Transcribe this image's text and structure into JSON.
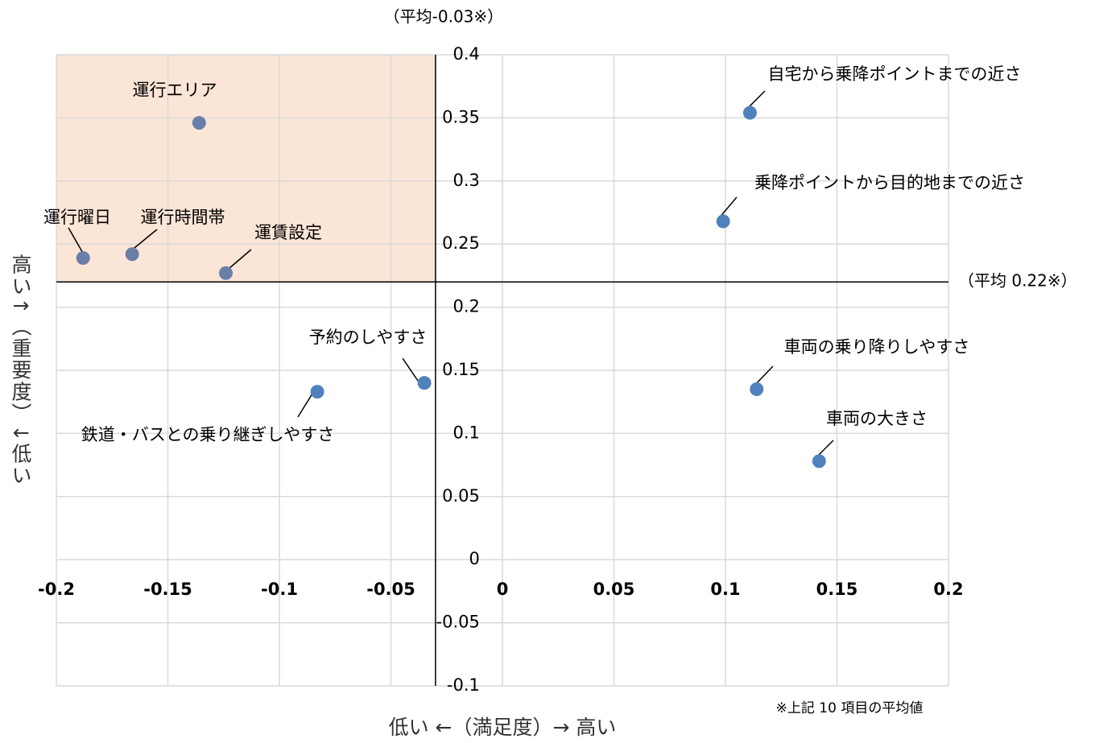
{
  "chart_data": {
    "type": "scatter",
    "x_label": "低い ←（満足度）→ 高い",
    "y_label": "高い↑（重要度）↓低い",
    "footnote": "※上記 10 項目の平均値",
    "avg_x": {
      "value": -0.03,
      "label": "（平均-0.03※）"
    },
    "avg_y": {
      "value": 0.22,
      "label": "（平均 0.22※）"
    },
    "highlight_color": "#fbe5d6",
    "labels": [
      "運行エリア",
      "運行曜日",
      "運行時間帯",
      "運賃設定",
      "予約のしやすさ",
      "鉄道・バスとの乗り継ぎしやすさ",
      "自宅から乗降ポイントまでの近さ",
      "乗降ポイントから目的地までの近さ",
      "車両の乗り降りしやすさ",
      "車両の大きさ"
    ],
    "x": [
      -0.136,
      -0.188,
      -0.166,
      -0.124,
      -0.035,
      -0.083,
      0.111,
      0.099,
      0.114,
      0.142
    ],
    "values": [
      0.346,
      0.239,
      0.242,
      0.227,
      0.14,
      0.133,
      0.354,
      0.268,
      0.135,
      0.078
    ],
    "colors": [
      "#6a7fa8",
      "#6a7fa8",
      "#6a7fa8",
      "#6a7fa8",
      "#4f81bd",
      "#4f81bd",
      "#4f81bd",
      "#4f81bd",
      "#4f81bd",
      "#4f81bd"
    ],
    "xlim": [
      -0.2,
      0.2
    ],
    "ylim": [
      -0.1,
      0.4
    ],
    "xticks": [
      -0.2,
      -0.15,
      -0.1,
      -0.05,
      0,
      0.05,
      0.1,
      0.15,
      0.2
    ],
    "yticks": [
      0.4,
      0.35,
      0.3,
      0.25,
      0.2,
      0.15,
      0.1,
      0.05,
      0,
      -0.05,
      -0.1
    ],
    "grid": true,
    "grid_color": "#d9d9d9"
  }
}
